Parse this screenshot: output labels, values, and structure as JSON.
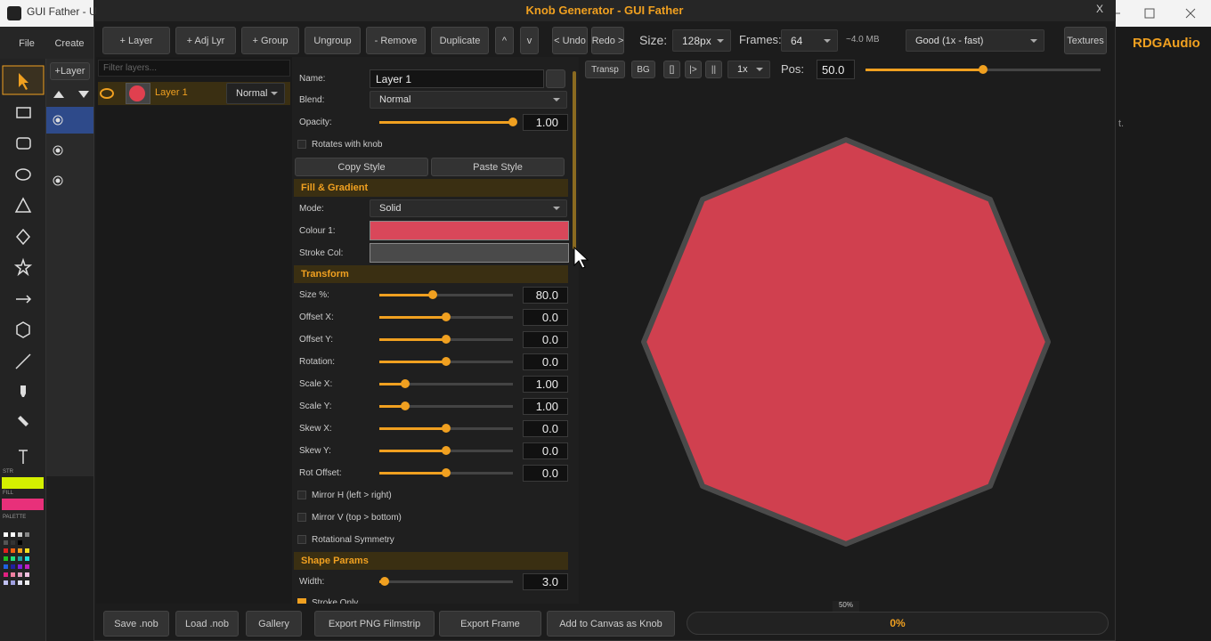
{
  "background_app": {
    "title": "GUI Father - U",
    "menu": [
      "File",
      "Create"
    ],
    "layer_button": "+Layer",
    "stroke_label": "STR",
    "fill_label": "FILL",
    "palette_label": "PALETTE",
    "brand": "RDGAudio",
    "hint": "t."
  },
  "dialog": {
    "title": "Knob Generator  -  GUI Father",
    "close": "X",
    "toolbar": {
      "buttons": [
        "+ Layer",
        "+ Adj Lyr",
        "+ Group",
        "Ungroup",
        "- Remove",
        "Duplicate",
        "^",
        "v",
        "< Undo",
        "Redo >"
      ],
      "size_label": "Size:",
      "size_value": "128px",
      "frames_label": "Frames:",
      "frames_value": "64",
      "memory": "~4.0 MB",
      "quality": "Good  (1x - fast)",
      "textures": "Textures"
    },
    "layers": {
      "filter_placeholder": "Filter layers...",
      "items": [
        {
          "name": "Layer 1",
          "blend": "Normal"
        }
      ]
    },
    "properties": {
      "name_label": "Name:",
      "name_value": "Layer 1",
      "blend_label": "Blend:",
      "blend_value": "Normal",
      "opacity_label": "Opacity:",
      "opacity_value": "1.00",
      "rotates": "Rotates with knob",
      "copy_style": "Copy Style",
      "paste_style": "Paste Style",
      "fill": {
        "title": "Fill & Gradient",
        "mode_label": "Mode:",
        "mode_value": "Solid",
        "colour_label": "Colour 1:",
        "stroke_label": "Stroke Col:"
      },
      "transform": {
        "title": "Transform",
        "rows": [
          {
            "label": "Size %:",
            "value": "80.0"
          },
          {
            "label": "Offset X:",
            "value": "0.0"
          },
          {
            "label": "Offset Y:",
            "value": "0.0"
          },
          {
            "label": "Rotation:",
            "value": "0.0"
          },
          {
            "label": "Scale X:",
            "value": "1.00"
          },
          {
            "label": "Scale Y:",
            "value": "1.00"
          },
          {
            "label": "Skew X:",
            "value": "0.0"
          },
          {
            "label": "Skew Y:",
            "value": "0.0"
          },
          {
            "label": "Rot Offset:",
            "value": "0.0"
          }
        ],
        "checkboxes": [
          "Mirror H (left > right)",
          "Mirror V (top > bottom)",
          "Rotational Symmetry"
        ]
      },
      "shape": {
        "title": "Shape Params",
        "width_label": "Width:",
        "width_value": "3.0",
        "stroke_only": "Stroke Only"
      }
    },
    "preview": {
      "buttons": [
        "Transp",
        "BG",
        "[]",
        "|>",
        "||"
      ],
      "speed": "1x",
      "pos_label": "Pos:",
      "pos_value": "50.0",
      "zoom": "50%"
    },
    "footer": {
      "buttons": [
        "Save .nob",
        "Load .nob",
        "Gallery",
        "Export PNG Filmstrip",
        "Export Frame",
        "Add to Canvas as Knob"
      ],
      "progress": "0%"
    }
  }
}
